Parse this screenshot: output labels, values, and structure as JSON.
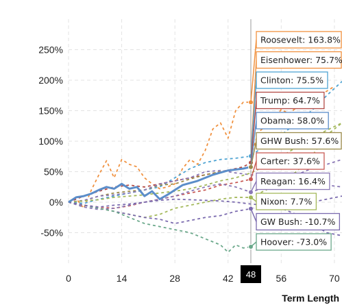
{
  "chart_data": {
    "type": "line",
    "xlabel": "Term Length",
    "ylabel": "",
    "xlim": [
      0,
      72
    ],
    "ylim": [
      -100,
      300
    ],
    "x_ticks": [
      0,
      14,
      28,
      42,
      56,
      70
    ],
    "y_ticks": [
      -50,
      0,
      50,
      100,
      150,
      200,
      250
    ],
    "y_tick_format": "percent",
    "grid": true,
    "cursor": {
      "x": 48,
      "label": "48"
    },
    "highlighted_series": "Obama",
    "series": [
      {
        "name": "Roosevelt",
        "color": "#f0913f",
        "points": [
          [
            0,
            0
          ],
          [
            2,
            6
          ],
          [
            4,
            -10
          ],
          [
            6,
            20
          ],
          [
            8,
            45
          ],
          [
            10,
            68
          ],
          [
            12,
            40
          ],
          [
            14,
            70
          ],
          [
            16,
            62
          ],
          [
            18,
            58
          ],
          [
            20,
            40
          ],
          [
            22,
            30
          ],
          [
            24,
            22
          ],
          [
            26,
            25
          ],
          [
            28,
            30
          ],
          [
            30,
            55
          ],
          [
            32,
            70
          ],
          [
            34,
            62
          ],
          [
            36,
            85
          ],
          [
            38,
            120
          ],
          [
            40,
            130
          ],
          [
            42,
            105
          ],
          [
            44,
            150
          ],
          [
            46,
            163.8
          ],
          [
            48,
            163.8
          ]
        ],
        "tooltip": "Roosevelt: 163.8%"
      },
      {
        "name": "Eisenhower",
        "color": "#f0913f",
        "points": [
          [
            48,
            75.7
          ],
          [
            50,
            115
          ],
          [
            52,
            125
          ],
          [
            54,
            135
          ],
          [
            56,
            152
          ],
          [
            58,
            145
          ],
          [
            60,
            155
          ],
          [
            62,
            168
          ],
          [
            64,
            160
          ],
          [
            66,
            175
          ],
          [
            68,
            182
          ],
          [
            70,
            190
          ]
        ],
        "tooltip": "Eisenhower: 75.7%"
      },
      {
        "name": "Clinton",
        "color": "#4ea3d2",
        "points": [
          [
            0,
            0
          ],
          [
            4,
            -2
          ],
          [
            8,
            5
          ],
          [
            12,
            10
          ],
          [
            16,
            15
          ],
          [
            20,
            20
          ],
          [
            24,
            25
          ],
          [
            28,
            40
          ],
          [
            32,
            55
          ],
          [
            36,
            65
          ],
          [
            40,
            70
          ],
          [
            44,
            72
          ],
          [
            48,
            75.5
          ],
          [
            52,
            95
          ],
          [
            56,
            110
          ],
          [
            60,
            130
          ],
          [
            64,
            150
          ],
          [
            68,
            175
          ],
          [
            72,
            198
          ]
        ],
        "tooltip": "Clinton: 75.5%"
      },
      {
        "name": "Trump",
        "color": "#b24a45",
        "points": [
          [
            0,
            0
          ],
          [
            4,
            10
          ],
          [
            8,
            18
          ],
          [
            12,
            25
          ],
          [
            16,
            28
          ],
          [
            20,
            25
          ],
          [
            24,
            30
          ],
          [
            28,
            35
          ],
          [
            32,
            40
          ],
          [
            36,
            45
          ],
          [
            40,
            50
          ],
          [
            44,
            55
          ],
          [
            46,
            58
          ],
          [
            48,
            64.7
          ]
        ],
        "tooltip": "Trump: 64.7%"
      },
      {
        "name": "Obama",
        "color": "#5b8dc9",
        "highlighted": true,
        "points": [
          [
            0,
            0
          ],
          [
            2,
            8
          ],
          [
            4,
            10
          ],
          [
            6,
            14
          ],
          [
            8,
            20
          ],
          [
            10,
            25
          ],
          [
            12,
            22
          ],
          [
            14,
            30
          ],
          [
            16,
            22
          ],
          [
            18,
            25
          ],
          [
            20,
            10
          ],
          [
            22,
            18
          ],
          [
            24,
            5
          ],
          [
            26,
            12
          ],
          [
            28,
            20
          ],
          [
            30,
            28
          ],
          [
            34,
            35
          ],
          [
            38,
            45
          ],
          [
            42,
            52
          ],
          [
            46,
            55
          ],
          [
            48,
            58.0
          ]
        ],
        "tooltip": "Obama: 58.0%"
      },
      {
        "name": "GHW Bush",
        "color": "#9a8a4a",
        "points": [
          [
            0,
            0
          ],
          [
            4,
            2
          ],
          [
            8,
            10
          ],
          [
            12,
            15
          ],
          [
            16,
            18
          ],
          [
            20,
            20
          ],
          [
            24,
            28
          ],
          [
            28,
            30
          ],
          [
            32,
            38
          ],
          [
            36,
            45
          ],
          [
            40,
            50
          ],
          [
            44,
            54
          ],
          [
            48,
            57.6
          ]
        ],
        "tooltip": "GHW Bush: 57.6%"
      },
      {
        "name": "Carter",
        "color": "#c85a55",
        "points": [
          [
            0,
            0
          ],
          [
            4,
            -5
          ],
          [
            8,
            -8
          ],
          [
            12,
            -10
          ],
          [
            16,
            -6
          ],
          [
            20,
            0
          ],
          [
            24,
            5
          ],
          [
            28,
            10
          ],
          [
            32,
            15
          ],
          [
            36,
            20
          ],
          [
            40,
            28
          ],
          [
            44,
            32
          ],
          [
            48,
            37.6
          ]
        ],
        "tooltip": "Carter: 37.6%"
      },
      {
        "name": "Reagan",
        "color": "#8a78b6",
        "points": [
          [
            0,
            0
          ],
          [
            4,
            -8
          ],
          [
            8,
            -12
          ],
          [
            12,
            -10
          ],
          [
            16,
            -5
          ],
          [
            20,
            0
          ],
          [
            24,
            5
          ],
          [
            28,
            10
          ],
          [
            32,
            18
          ],
          [
            36,
            25
          ],
          [
            40,
            30
          ],
          [
            44,
            25
          ],
          [
            48,
            16.4
          ],
          [
            52,
            25
          ],
          [
            56,
            35
          ],
          [
            60,
            45
          ],
          [
            64,
            55
          ],
          [
            68,
            62
          ],
          [
            72,
            70
          ]
        ],
        "tooltip": "Reagan: 16.4%"
      },
      {
        "name": "Nixon",
        "color": "#a3b85a",
        "points": [
          [
            0,
            0
          ],
          [
            4,
            -5
          ],
          [
            8,
            -10
          ],
          [
            12,
            -15
          ],
          [
            16,
            -20
          ],
          [
            20,
            -25
          ],
          [
            24,
            -20
          ],
          [
            28,
            -10
          ],
          [
            32,
            -5
          ],
          [
            36,
            0
          ],
          [
            40,
            5
          ],
          [
            44,
            8
          ],
          [
            48,
            7.7
          ],
          [
            52,
            20
          ],
          [
            56,
            35
          ],
          [
            60,
            50
          ],
          [
            64,
            75
          ],
          [
            68,
            110
          ],
          [
            72,
            130
          ]
        ],
        "tooltip": "Nixon: 7.7%"
      },
      {
        "name": "GW Bush",
        "color": "#7a6aae",
        "points": [
          [
            0,
            0
          ],
          [
            4,
            -5
          ],
          [
            8,
            -10
          ],
          [
            12,
            -15
          ],
          [
            16,
            -20
          ],
          [
            20,
            -25
          ],
          [
            24,
            -28
          ],
          [
            28,
            -35
          ],
          [
            32,
            -30
          ],
          [
            36,
            -25
          ],
          [
            40,
            -22
          ],
          [
            44,
            -15
          ],
          [
            48,
            -10.7
          ],
          [
            52,
            -5
          ],
          [
            56,
            -10
          ],
          [
            60,
            -20
          ],
          [
            64,
            -35
          ],
          [
            68,
            -50
          ],
          [
            72,
            -55
          ]
        ],
        "tooltip": "GW Bush: -10.7%"
      },
      {
        "name": "Hoover",
        "color": "#6aa88a",
        "points": [
          [
            0,
            0
          ],
          [
            4,
            -5
          ],
          [
            8,
            -10
          ],
          [
            12,
            -15
          ],
          [
            16,
            -25
          ],
          [
            20,
            -35
          ],
          [
            24,
            -40
          ],
          [
            28,
            -45
          ],
          [
            32,
            -50
          ],
          [
            36,
            -60
          ],
          [
            40,
            -70
          ],
          [
            42,
            -82
          ],
          [
            44,
            -70
          ],
          [
            46,
            -75
          ],
          [
            48,
            -73.0
          ]
        ],
        "tooltip": "Hoover: -73.0%"
      },
      {
        "name": "",
        "color": "#8a78b6",
        "points": [
          [
            0,
            0
          ],
          [
            4,
            3
          ],
          [
            8,
            10
          ],
          [
            12,
            12
          ],
          [
            16,
            15
          ],
          [
            20,
            20
          ],
          [
            24,
            30
          ],
          [
            28,
            35
          ],
          [
            32,
            40
          ],
          [
            36,
            50
          ],
          [
            40,
            52
          ],
          [
            44,
            48
          ],
          [
            48,
            45
          ],
          [
            52,
            42
          ],
          [
            56,
            40
          ],
          [
            60,
            35
          ],
          [
            64,
            30
          ],
          [
            68,
            28
          ],
          [
            72,
            25
          ]
        ]
      },
      {
        "name": "",
        "color": "#a3b85a",
        "points": [
          [
            0,
            0
          ],
          [
            4,
            2
          ],
          [
            8,
            4
          ],
          [
            12,
            8
          ],
          [
            16,
            10
          ],
          [
            20,
            12
          ],
          [
            24,
            15
          ],
          [
            28,
            18
          ],
          [
            32,
            22
          ],
          [
            36,
            28
          ],
          [
            40,
            35
          ],
          [
            44,
            40
          ],
          [
            48,
            48
          ],
          [
            52,
            60
          ],
          [
            56,
            75
          ],
          [
            60,
            90
          ],
          [
            64,
            105
          ],
          [
            68,
            118
          ],
          [
            72,
            130
          ]
        ]
      },
      {
        "name": "",
        "color": "#7a6aae",
        "points": [
          [
            0,
            0
          ],
          [
            4,
            -5
          ],
          [
            8,
            -8
          ],
          [
            12,
            -5
          ],
          [
            16,
            -3
          ],
          [
            20,
            0
          ],
          [
            24,
            3
          ],
          [
            28,
            5
          ],
          [
            32,
            4
          ],
          [
            36,
            3
          ],
          [
            40,
            2
          ],
          [
            44,
            0
          ],
          [
            48,
            -3
          ],
          [
            52,
            -5
          ],
          [
            56,
            -8
          ],
          [
            60,
            -5
          ],
          [
            64,
            0
          ],
          [
            68,
            5
          ],
          [
            72,
            10
          ]
        ]
      }
    ]
  }
}
